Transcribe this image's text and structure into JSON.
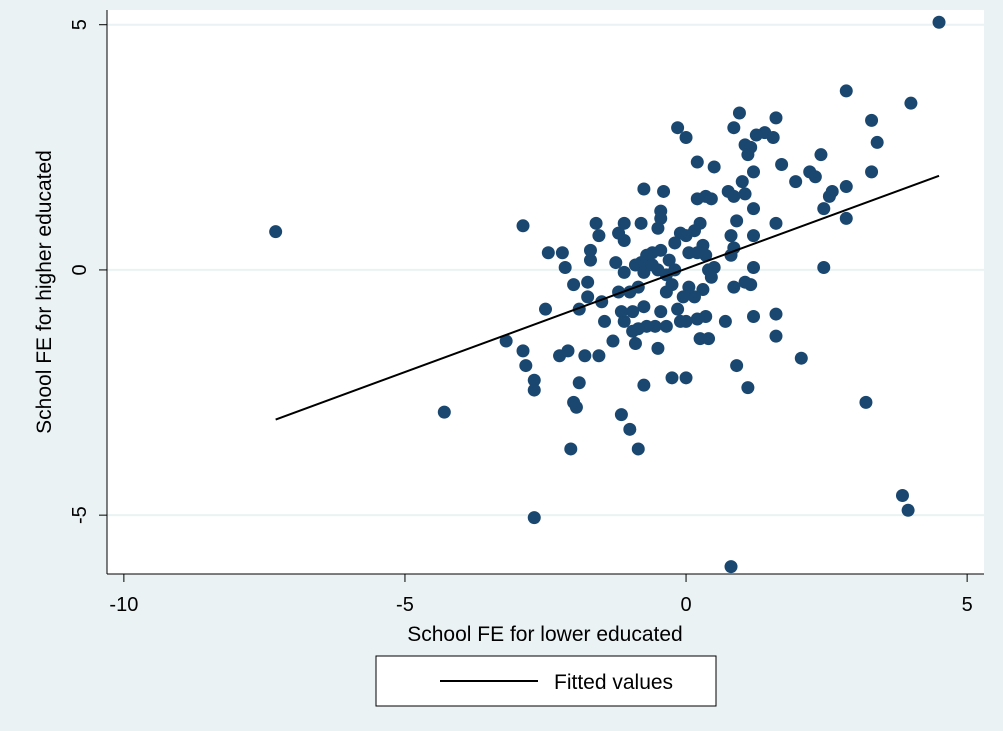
{
  "chart_data": {
    "type": "scatter",
    "title": "",
    "xlabel": "School FE for lower educated",
    "ylabel": "School FE for higher educated",
    "xlim": [
      -10.3,
      5.3
    ],
    "ylim": [
      -6.2,
      5.3
    ],
    "xticks": [
      -10,
      -5,
      0,
      5
    ],
    "yticks": [
      -5,
      0,
      5
    ],
    "xtick_labels": [
      "-10",
      "-5",
      "0",
      "5"
    ],
    "ytick_labels": [
      "-5",
      "0",
      "5"
    ],
    "grid": "horizontal",
    "legend": {
      "position": "bottom",
      "entries": [
        "Fitted values"
      ]
    },
    "colors": {
      "background": "#eaf2f3",
      "plot_area": "#ffffff",
      "points": "#1a476f",
      "line": "#000000",
      "grid": "#eaf2f3"
    },
    "fitted_line": {
      "x": [
        -7.3,
        4.5
      ],
      "y": [
        -3.05,
        1.92
      ]
    },
    "points": [
      [
        -7.3,
        0.78
      ],
      [
        4.5,
        5.05
      ],
      [
        -4.3,
        -2.9
      ],
      [
        -2.7,
        -5.05
      ],
      [
        0.8,
        -6.05
      ],
      [
        2.85,
        3.65
      ],
      [
        4.0,
        3.4
      ],
      [
        3.3,
        3.05
      ],
      [
        3.4,
        2.6
      ],
      [
        3.3,
        2.0
      ],
      [
        2.85,
        1.7
      ],
      [
        2.85,
        1.05
      ],
      [
        3.2,
        -2.7
      ],
      [
        3.85,
        -4.6
      ],
      [
        3.95,
        -4.9
      ],
      [
        2.45,
        0.05
      ],
      [
        2.4,
        2.35
      ],
      [
        2.2,
        2.0
      ],
      [
        2.3,
        1.9
      ],
      [
        1.95,
        1.8
      ],
      [
        1.7,
        2.15
      ],
      [
        1.4,
        2.8
      ],
      [
        1.55,
        2.7
      ],
      [
        1.25,
        2.75
      ],
      [
        1.6,
        3.1
      ],
      [
        0.95,
        3.2
      ],
      [
        0.85,
        2.9
      ],
      [
        1.05,
        2.55
      ],
      [
        1.15,
        2.5
      ],
      [
        1.1,
        2.35
      ],
      [
        1.2,
        2.0
      ],
      [
        1.05,
        1.55
      ],
      [
        1.0,
        1.8
      ],
      [
        0.75,
        1.6
      ],
      [
        0.85,
        1.5
      ],
      [
        1.2,
        1.25
      ],
      [
        0.9,
        1.0
      ],
      [
        0.8,
        0.7
      ],
      [
        0.85,
        0.45
      ],
      [
        0.8,
        0.3
      ],
      [
        1.2,
        0.7
      ],
      [
        1.2,
        0.05
      ],
      [
        1.05,
        -0.25
      ],
      [
        1.15,
        -0.3
      ],
      [
        0.85,
        -0.35
      ],
      [
        1.2,
        -0.95
      ],
      [
        0.7,
        -1.05
      ],
      [
        0.9,
        -1.95
      ],
      [
        1.1,
        -2.4
      ],
      [
        1.6,
        0.95
      ],
      [
        1.6,
        -0.9
      ],
      [
        1.6,
        -1.35
      ],
      [
        2.05,
        -1.8
      ],
      [
        2.45,
        1.25
      ],
      [
        2.55,
        1.5
      ],
      [
        2.6,
        1.6
      ],
      [
        0.5,
        2.1
      ],
      [
        0.2,
        2.2
      ],
      [
        0.0,
        2.7
      ],
      [
        -0.15,
        2.9
      ],
      [
        0.35,
        1.5
      ],
      [
        0.45,
        1.45
      ],
      [
        0.2,
        1.45
      ],
      [
        0.25,
        0.95
      ],
      [
        0.15,
        0.8
      ],
      [
        0.0,
        0.7
      ],
      [
        -0.1,
        0.75
      ],
      [
        0.3,
        0.5
      ],
      [
        0.35,
        0.3
      ],
      [
        0.2,
        0.35
      ],
      [
        0.05,
        0.35
      ],
      [
        -0.2,
        0.55
      ],
      [
        0.4,
        0.0
      ],
      [
        0.5,
        0.05
      ],
      [
        0.45,
        -0.15
      ],
      [
        0.3,
        -0.4
      ],
      [
        0.15,
        -0.55
      ],
      [
        0.05,
        -0.35
      ],
      [
        -0.05,
        -0.55
      ],
      [
        -0.15,
        -0.8
      ],
      [
        0.2,
        -1.0
      ],
      [
        0.35,
        -0.95
      ],
      [
        0.25,
        -1.4
      ],
      [
        0.4,
        -1.4
      ],
      [
        0.0,
        -1.05
      ],
      [
        -0.1,
        -1.05
      ],
      [
        0.0,
        -2.2
      ],
      [
        -0.25,
        -2.2
      ],
      [
        -0.4,
        1.6
      ],
      [
        -0.45,
        1.2
      ],
      [
        -0.45,
        1.05
      ],
      [
        -0.5,
        0.85
      ],
      [
        -0.75,
        1.65
      ],
      [
        -0.8,
        0.95
      ],
      [
        -0.45,
        0.4
      ],
      [
        -0.5,
        0.0
      ],
      [
        -0.35,
        -0.1
      ],
      [
        -0.25,
        -0.3
      ],
      [
        -0.35,
        -0.45
      ],
      [
        -0.45,
        -0.85
      ],
      [
        -0.35,
        -1.15
      ],
      [
        -0.55,
        -1.15
      ],
      [
        -0.5,
        -1.6
      ],
      [
        -0.7,
        -1.15
      ],
      [
        -0.75,
        -0.75
      ],
      [
        -0.6,
        0.35
      ],
      [
        -0.7,
        0.3
      ],
      [
        -0.8,
        0.15
      ],
      [
        -0.9,
        0.1
      ],
      [
        -0.75,
        -0.05
      ],
      [
        -0.85,
        -0.35
      ],
      [
        -1.0,
        -0.45
      ],
      [
        -0.95,
        -0.85
      ],
      [
        -0.85,
        -1.2
      ],
      [
        -0.9,
        -1.5
      ],
      [
        -1.1,
        -1.05
      ],
      [
        -1.15,
        -0.85
      ],
      [
        -1.2,
        -0.45
      ],
      [
        -1.1,
        -0.05
      ],
      [
        -1.25,
        0.15
      ],
      [
        -1.1,
        0.6
      ],
      [
        -1.2,
        0.75
      ],
      [
        -1.1,
        0.95
      ],
      [
        -0.95,
        -1.25
      ],
      [
        -0.75,
        -2.35
      ],
      [
        -1.15,
        -2.95
      ],
      [
        -1.0,
        -3.25
      ],
      [
        -0.85,
        -3.65
      ],
      [
        -1.5,
        -0.65
      ],
      [
        -1.45,
        -1.05
      ],
      [
        -1.75,
        -0.55
      ],
      [
        -1.75,
        -0.25
      ],
      [
        -1.7,
        0.2
      ],
      [
        -1.7,
        0.4
      ],
      [
        -1.55,
        0.7
      ],
      [
        -1.6,
        0.95
      ],
      [
        -1.8,
        -1.75
      ],
      [
        -1.55,
        -1.75
      ],
      [
        -1.3,
        -1.45
      ],
      [
        -2.0,
        -0.3
      ],
      [
        -1.9,
        -0.8
      ],
      [
        -2.15,
        0.05
      ],
      [
        -2.2,
        0.35
      ],
      [
        -2.45,
        0.35
      ],
      [
        -2.5,
        -0.8
      ],
      [
        -2.25,
        -1.75
      ],
      [
        -2.1,
        -1.65
      ],
      [
        -1.9,
        -2.3
      ],
      [
        -1.95,
        -2.8
      ],
      [
        -2.0,
        -2.7
      ],
      [
        -2.05,
        -3.65
      ],
      [
        -2.7,
        -2.25
      ],
      [
        -2.7,
        -2.45
      ],
      [
        -2.9,
        -1.65
      ],
      [
        -2.85,
        -1.95
      ],
      [
        -3.2,
        -1.45
      ],
      [
        -2.9,
        0.9
      ],
      [
        -0.3,
        0.2
      ],
      [
        -0.6,
        0.1
      ],
      [
        -0.2,
        0.0
      ]
    ]
  }
}
